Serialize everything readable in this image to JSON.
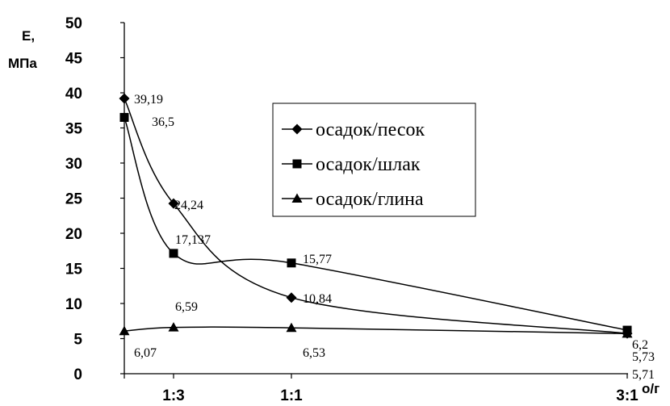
{
  "chart_data": {
    "type": "line",
    "xlabel": "о/г",
    "ylabel_line1": "E,",
    "ylabel_line2": "МПа",
    "ylim": [
      0,
      50
    ],
    "yticks": [
      0,
      5,
      10,
      15,
      20,
      25,
      30,
      35,
      40,
      45,
      50
    ],
    "x_positions": [
      0,
      1,
      4,
      10
    ],
    "categories": [
      "",
      "1:3",
      "1:1",
      "3:1"
    ],
    "grid": false,
    "legend_position": "center-right",
    "series": [
      {
        "name": "осадок/песок",
        "marker": "diamond",
        "values": [
          39.19,
          24.24,
          10.84,
          5.73
        ],
        "labels": [
          "39,19",
          "24,24",
          "10,84",
          "5,73"
        ]
      },
      {
        "name": "осадок/шлак",
        "marker": "square",
        "values": [
          36.5,
          17.137,
          15.77,
          6.2
        ],
        "labels": [
          "36,5",
          "17,137",
          "15,77",
          "6,2"
        ]
      },
      {
        "name": "осадок/глина",
        "marker": "triangle",
        "values": [
          6.07,
          6.59,
          6.53,
          5.71
        ],
        "labels": [
          "6,07",
          "6,59",
          "6,53",
          "5,71"
        ]
      }
    ]
  }
}
